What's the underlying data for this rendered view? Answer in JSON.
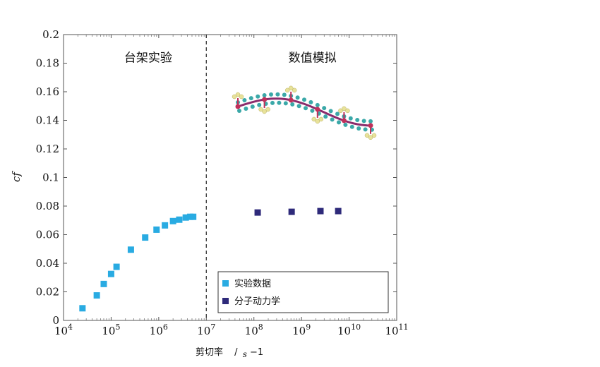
{
  "chart_data": {
    "type": "scatter",
    "xscale": "log",
    "xlim": [
      10000,
      100000000000
    ],
    "ylim": [
      0,
      0.2
    ],
    "xlabel": "剪切率",
    "xlabel_unit_base": "/",
    "xlabel_unit_var": "s",
    "xlabel_unit_exp": "−1",
    "ylabel": "cf",
    "x_ticks": [
      {
        "value": 10000,
        "base": "10",
        "exp": "4"
      },
      {
        "value": 100000,
        "base": "10",
        "exp": "5"
      },
      {
        "value": 1000000,
        "base": "10",
        "exp": "6"
      },
      {
        "value": 10000000,
        "base": "10",
        "exp": "7"
      },
      {
        "value": 100000000,
        "base": "10",
        "exp": "8"
      },
      {
        "value": 1000000000,
        "base": "10",
        "exp": "9"
      },
      {
        "value": 10000000000,
        "base": "10",
        "exp": "10"
      },
      {
        "value": 100000000000,
        "base": "10",
        "exp": "11"
      }
    ],
    "y_ticks": [
      {
        "value": 0,
        "label": "0"
      },
      {
        "value": 0.02,
        "label": "0.02"
      },
      {
        "value": 0.04,
        "label": "0.04"
      },
      {
        "value": 0.06,
        "label": "0.06"
      },
      {
        "value": 0.08,
        "label": "0.08"
      },
      {
        "value": 0.1,
        "label": "0.1"
      },
      {
        "value": 0.12,
        "label": "0.12"
      },
      {
        "value": 0.14,
        "label": "0.14"
      },
      {
        "value": 0.16,
        "label": "0.16"
      },
      {
        "value": 0.18,
        "label": "0.18"
      },
      {
        "value": 0.2,
        "label": "0.2"
      }
    ],
    "divider_x": 10000000,
    "regions": [
      {
        "label": "台架实验",
        "x": 600000,
        "y": 0.181
      },
      {
        "label": "数值模拟",
        "x": 1700000000,
        "y": 0.181
      }
    ],
    "legend_position": "bottom-right",
    "series": [
      {
        "name": "实验数据",
        "color": "#29abe2",
        "points": [
          {
            "x": 25000,
            "y": 0.0085
          },
          {
            "x": 50000,
            "y": 0.0175
          },
          {
            "x": 70000,
            "y": 0.0255
          },
          {
            "x": 100000,
            "y": 0.0325
          },
          {
            "x": 130000,
            "y": 0.0375
          },
          {
            "x": 260000,
            "y": 0.0495
          },
          {
            "x": 520000,
            "y": 0.058
          },
          {
            "x": 900000,
            "y": 0.0635
          },
          {
            "x": 1350000,
            "y": 0.0665
          },
          {
            "x": 2000000,
            "y": 0.0695
          },
          {
            "x": 2700000,
            "y": 0.0705
          },
          {
            "x": 3700000,
            "y": 0.072
          },
          {
            "x": 4600000,
            "y": 0.0725
          },
          {
            "x": 5300000,
            "y": 0.0725
          }
        ]
      },
      {
        "name": "分子动力学",
        "color": "#2e2a7a",
        "points": [
          {
            "x": 120000000,
            "y": 0.0755
          },
          {
            "x": 620000000,
            "y": 0.076
          },
          {
            "x": 2500000000,
            "y": 0.0765
          },
          {
            "x": 5900000000,
            "y": 0.0765
          }
        ]
      }
    ],
    "molecule_colors": {
      "backbone": "#8b2b6b",
      "side_atom": "#3aa8a8",
      "end_atom": "#e8e29a",
      "joint": "#c0305a"
    }
  }
}
